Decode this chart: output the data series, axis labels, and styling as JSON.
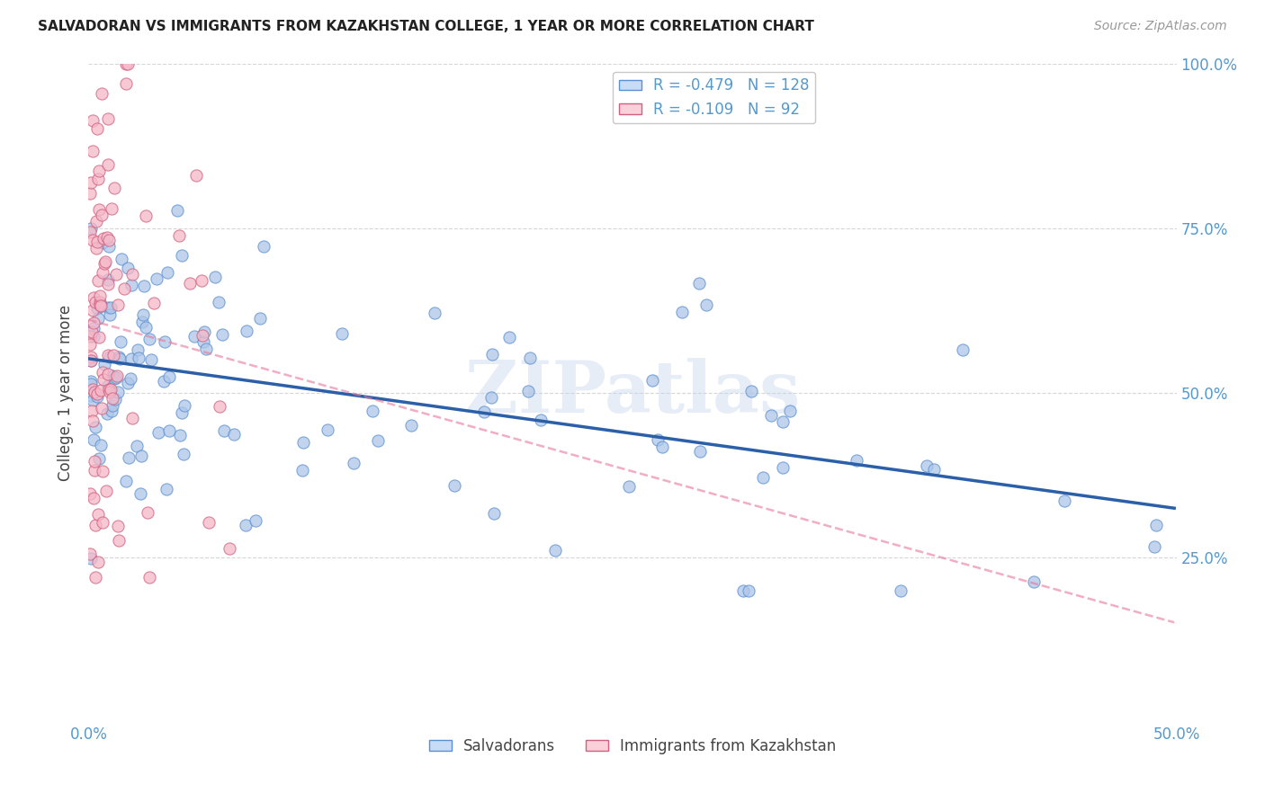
{
  "title": "SALVADORAN VS IMMIGRANTS FROM KAZAKHSTAN COLLEGE, 1 YEAR OR MORE CORRELATION CHART",
  "source": "Source: ZipAtlas.com",
  "ylabel": "College, 1 year or more",
  "xlim": [
    0.0,
    0.5
  ],
  "ylim": [
    0.0,
    1.0
  ],
  "salvadoran_R": -0.479,
  "salvadoran_N": 128,
  "kazakhstan_R": -0.109,
  "kazakhstan_N": 92,
  "salvadoran_color": "#aec6e8",
  "salvadoran_line_color": "#2b5fa8",
  "salvadoran_edge_color": "#5a8fd0",
  "kazakhstan_color": "#f5b8c8",
  "kazakhstan_line_color": "#e8789a",
  "kazakhstan_edge_color": "#d06080",
  "watermark": "ZIPatlas",
  "legend_blue_face": "#c8ddf5",
  "legend_pink_face": "#fad0da",
  "background_color": "#ffffff",
  "tick_color": "#5599cc",
  "grid_color": "#cccccc",
  "title_color": "#222222",
  "source_color": "#999999",
  "ylabel_color": "#444444"
}
